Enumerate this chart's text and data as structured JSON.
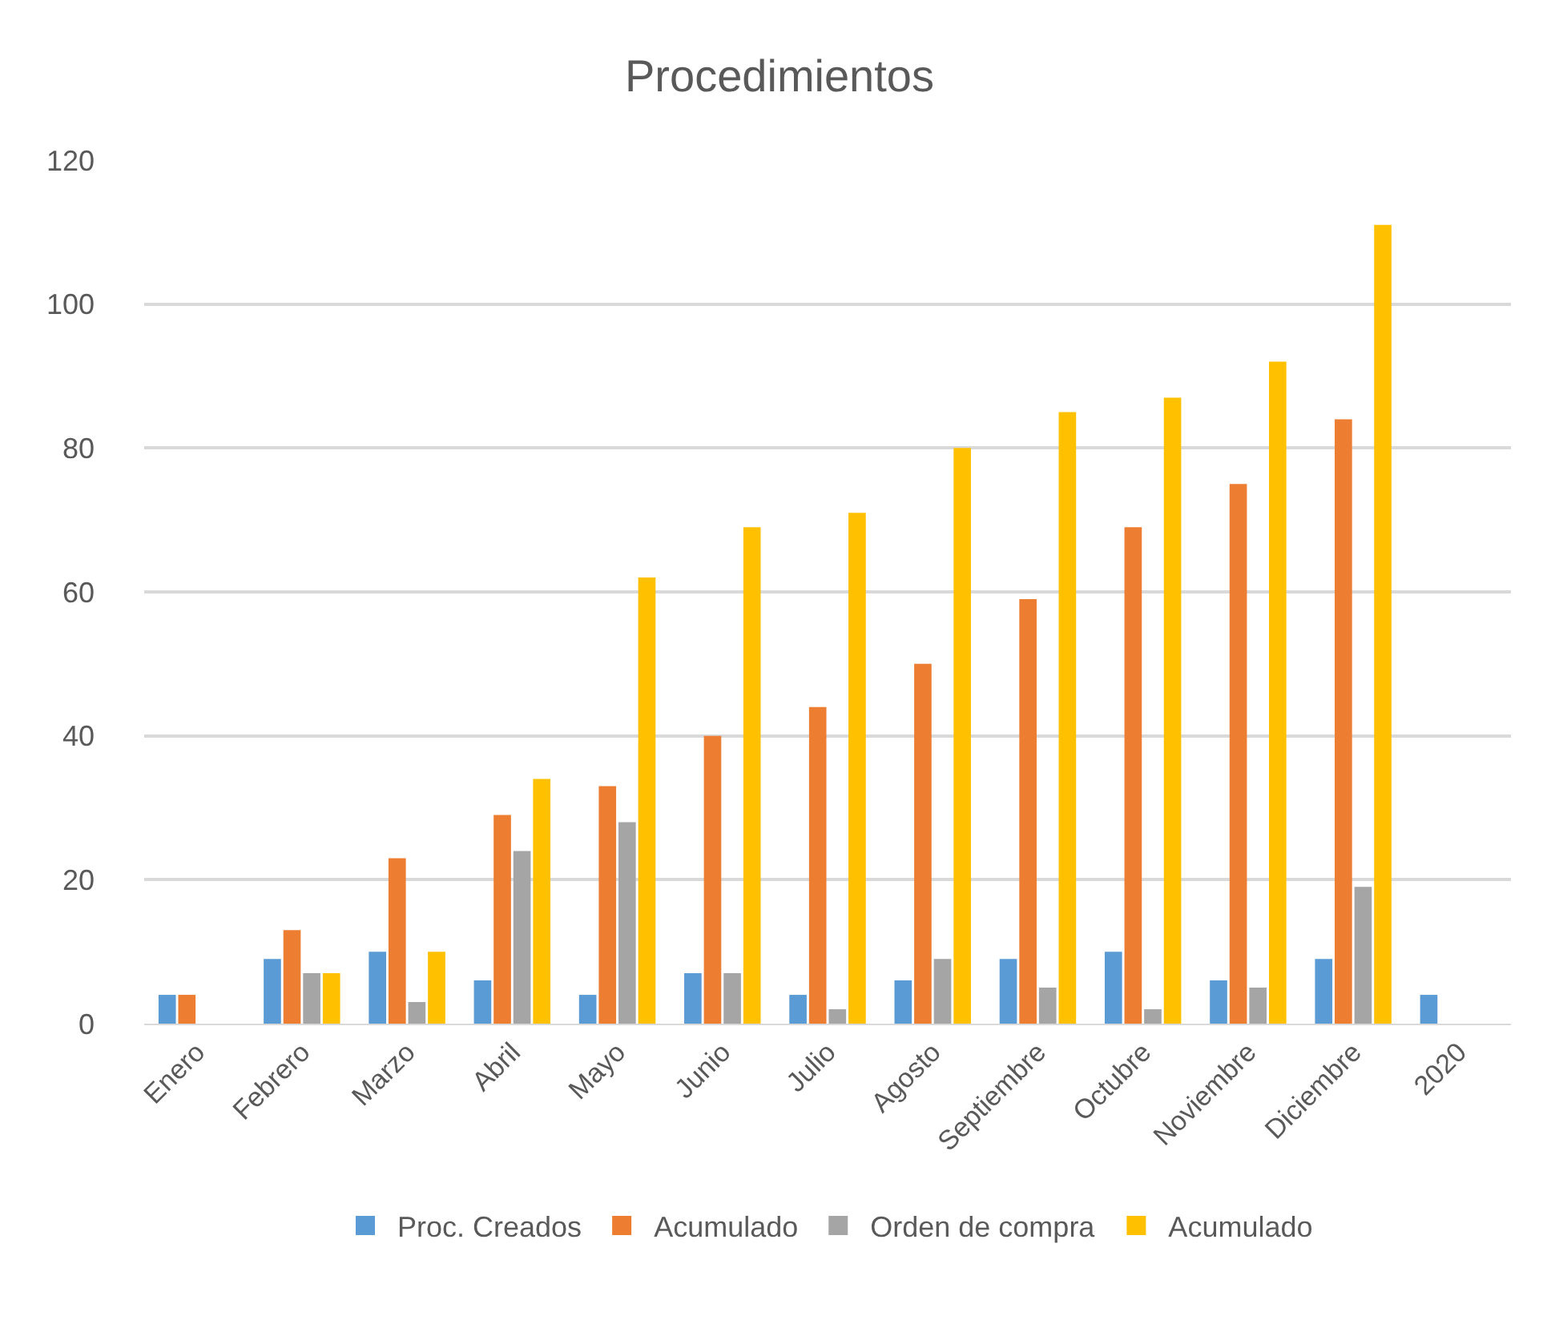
{
  "chart_data": {
    "type": "bar",
    "title": "Procedimientos",
    "categories": [
      "Enero",
      "Febrero",
      "Marzo",
      "Abril",
      "Mayo",
      "Junio",
      "Julio",
      "Agosto",
      "Septiembre",
      "Octubre",
      "Noviembre",
      "Diciembre",
      "2020"
    ],
    "series": [
      {
        "name": "Proc. Creados",
        "color": "#5b9bd5",
        "values": [
          4,
          9,
          10,
          6,
          4,
          7,
          4,
          6,
          9,
          10,
          6,
          9,
          4
        ]
      },
      {
        "name": "Acumulado",
        "color": "#ed7d31",
        "values": [
          4,
          13,
          23,
          29,
          33,
          40,
          44,
          50,
          59,
          69,
          75,
          84,
          null
        ]
      },
      {
        "name": "Orden de compra",
        "color": "#a5a5a5",
        "values": [
          null,
          7,
          3,
          24,
          28,
          7,
          2,
          9,
          5,
          2,
          5,
          19,
          null
        ]
      },
      {
        "name": "Acumulado",
        "color": "#ffc000",
        "values": [
          null,
          7,
          10,
          34,
          62,
          69,
          71,
          80,
          85,
          87,
          92,
          111,
          null
        ]
      }
    ],
    "ylim": [
      0,
      120
    ],
    "yticks": [
      0,
      20,
      40,
      60,
      80,
      100,
      120
    ],
    "grid": "y",
    "legend": "bottom"
  }
}
